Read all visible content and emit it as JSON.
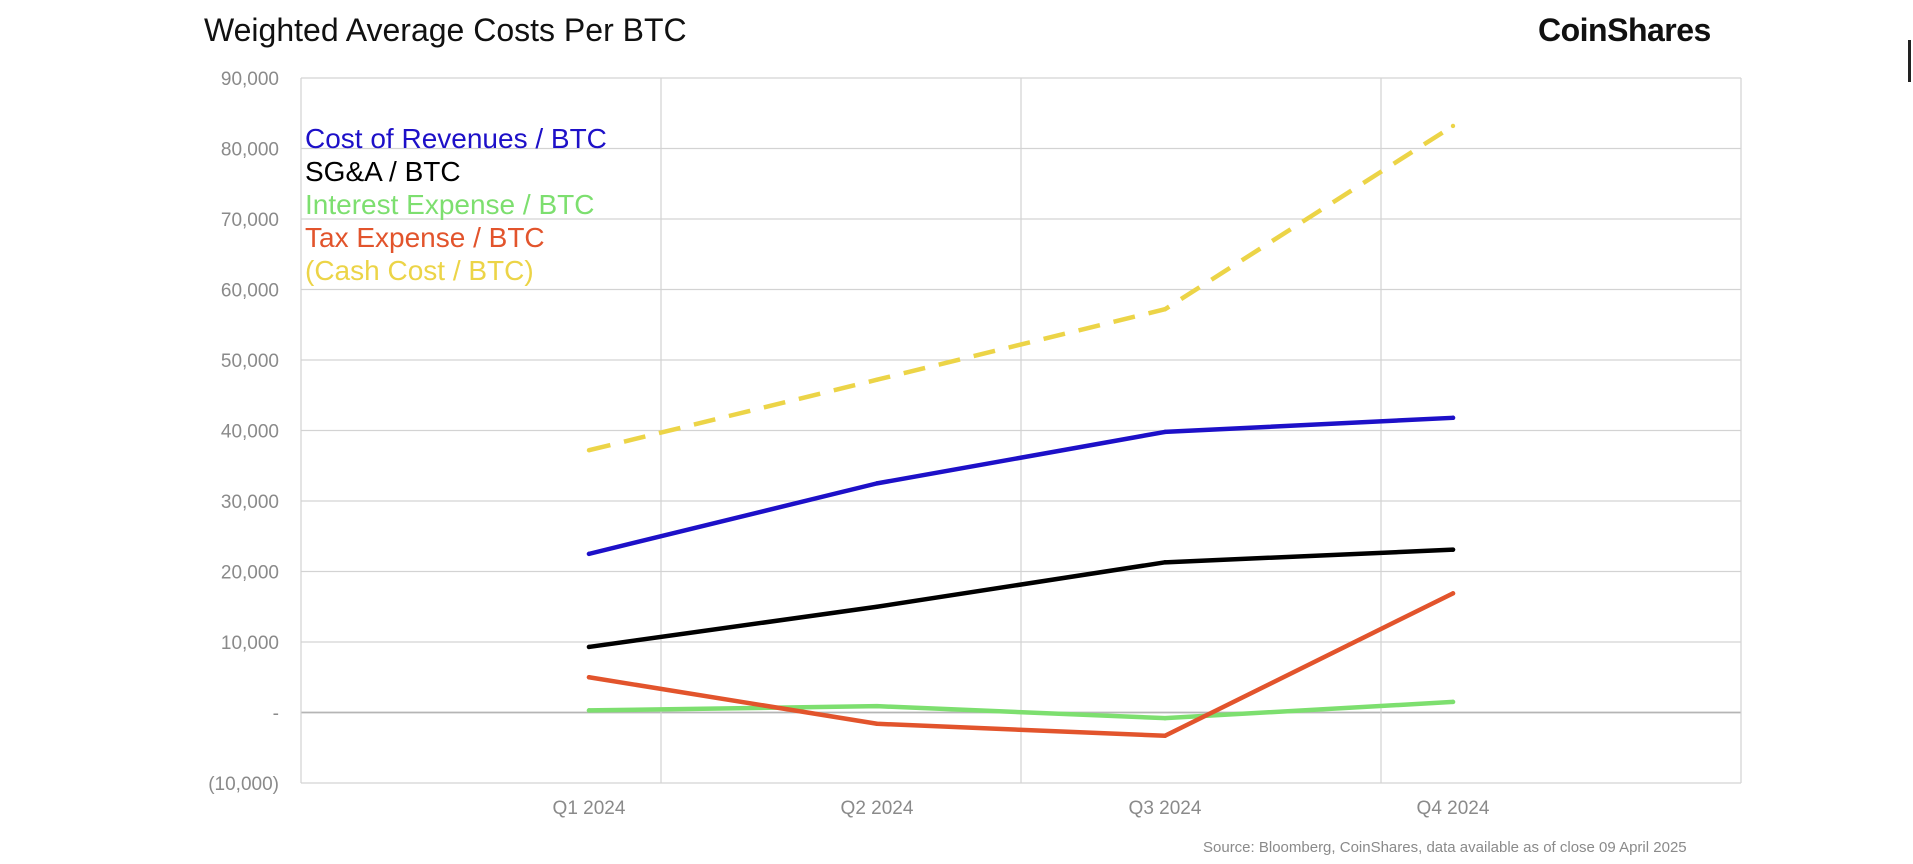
{
  "header": {
    "title": "Weighted Average Costs Per BTC",
    "logo_text": "CoinShares"
  },
  "footer": {
    "source": "Source: Bloomberg, CoinShares, data available as of close 09 April 2025"
  },
  "chart_data": {
    "type": "line",
    "title": "Weighted Average Costs Per BTC",
    "xlabel": "",
    "ylabel": "",
    "categories": [
      "Q1 2024",
      "Q2 2024",
      "Q3 2024",
      "Q4 2024"
    ],
    "ylim": [
      -10000,
      90000
    ],
    "y_ticks": [
      -10000,
      0,
      10000,
      20000,
      30000,
      40000,
      50000,
      60000,
      70000,
      80000,
      90000
    ],
    "y_tick_labels": [
      "(10,000)",
      "-",
      "10,000",
      "20,000",
      "30,000",
      "40,000",
      "50,000",
      "60,000",
      "70,000",
      "80,000",
      "90,000"
    ],
    "grid": true,
    "legend_position": "top-left",
    "series": [
      {
        "name": "Cost of Revenues / BTC",
        "values": [
          22500,
          32500,
          39800,
          41800
        ],
        "color": "#1d10c8",
        "dashed": false
      },
      {
        "name": "SG&A / BTC",
        "values": [
          9300,
          15000,
          21300,
          23100
        ],
        "color": "#000000",
        "dashed": false
      },
      {
        "name": "Interest Expense / BTC",
        "values": [
          300,
          900,
          -800,
          1500
        ],
        "color": "#7ddf6f",
        "dashed": false
      },
      {
        "name": "Tax Expense / BTC",
        "values": [
          5000,
          -1600,
          -3300,
          16900
        ],
        "color": "#e2542c",
        "dashed": false
      },
      {
        "name": "(Cash Cost / BTC)",
        "values": [
          37200,
          47200,
          57200,
          83200
        ],
        "color": "#ecd447",
        "dashed": true
      }
    ]
  }
}
